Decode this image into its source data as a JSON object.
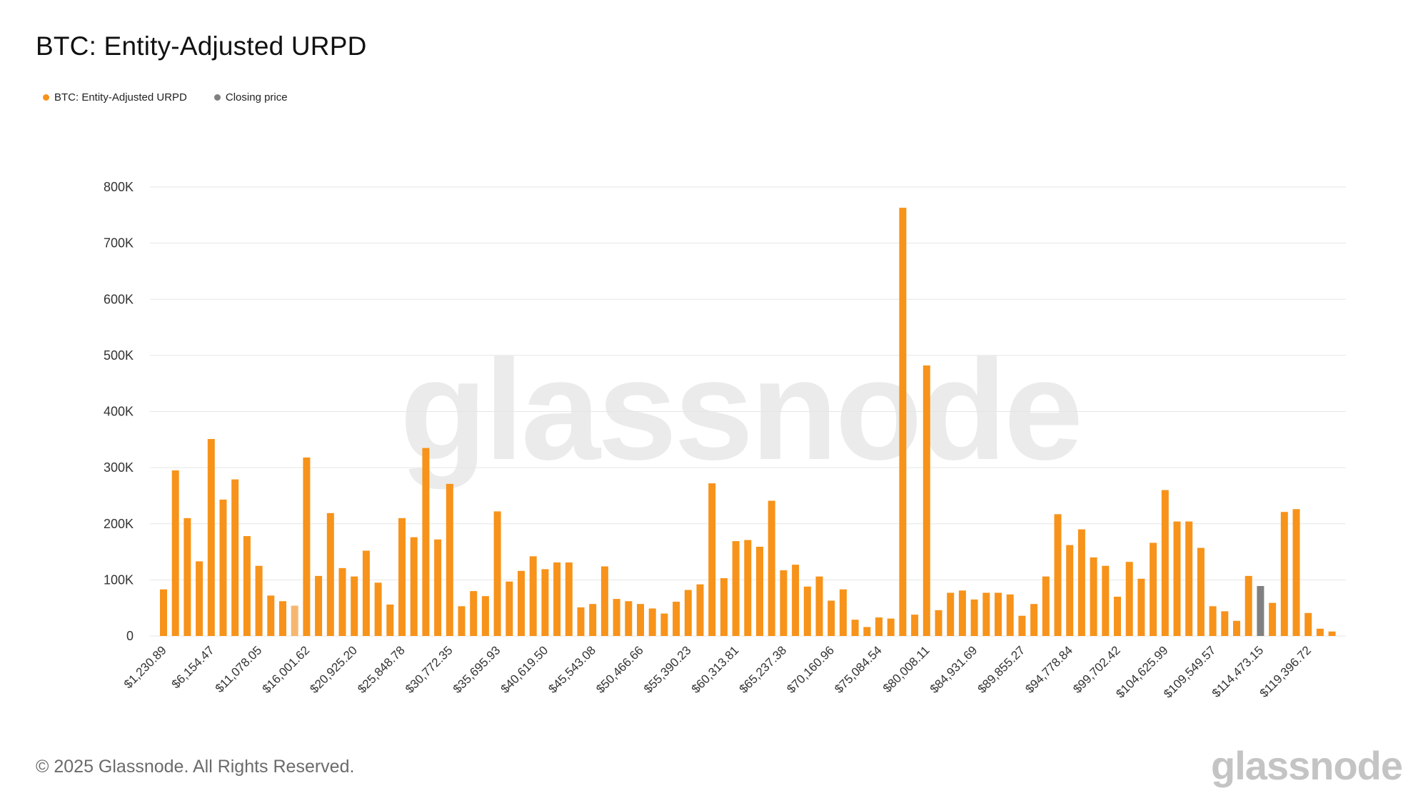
{
  "title": "BTC: Entity-Adjusted URPD",
  "legend": [
    {
      "label": "BTC: Entity-Adjusted URPD",
      "color": "#f7931a"
    },
    {
      "label": "Closing price",
      "color": "#808080"
    }
  ],
  "footer": "© 2025 Glassnode. All Rights Reserved.",
  "brand": "glassnode",
  "watermark": "glassnode",
  "chart_data": {
    "type": "bar",
    "ylim": [
      0,
      800000
    ],
    "yticks": [
      {
        "value": 0,
        "label": "0"
      },
      {
        "value": 100000,
        "label": "100K"
      },
      {
        "value": 200000,
        "label": "200K"
      },
      {
        "value": 300000,
        "label": "300K"
      },
      {
        "value": 400000,
        "label": "400K"
      },
      {
        "value": 500000,
        "label": "500K"
      },
      {
        "value": 600000,
        "label": "600K"
      },
      {
        "value": 700000,
        "label": "700K"
      },
      {
        "value": 800000,
        "label": "800K"
      }
    ],
    "xticks": [
      {
        "index": 0,
        "label": "$1,230.89"
      },
      {
        "index": 4,
        "label": "$6,154.47"
      },
      {
        "index": 8,
        "label": "$11,078.05"
      },
      {
        "index": 12,
        "label": "$16,001.62"
      },
      {
        "index": 16,
        "label": "$20,925.20"
      },
      {
        "index": 20,
        "label": "$25,848.78"
      },
      {
        "index": 24,
        "label": "$30,772.35"
      },
      {
        "index": 28,
        "label": "$35,695.93"
      },
      {
        "index": 32,
        "label": "$40,619.50"
      },
      {
        "index": 36,
        "label": "$45,543.08"
      },
      {
        "index": 40,
        "label": "$50,466.66"
      },
      {
        "index": 44,
        "label": "$55,390.23"
      },
      {
        "index": 48,
        "label": "$60,313.81"
      },
      {
        "index": 52,
        "label": "$65,237.38"
      },
      {
        "index": 56,
        "label": "$70,160.96"
      },
      {
        "index": 60,
        "label": "$75,084.54"
      },
      {
        "index": 64,
        "label": "$80,008.11"
      },
      {
        "index": 68,
        "label": "$84,931.69"
      },
      {
        "index": 72,
        "label": "$89,855.27"
      },
      {
        "index": 76,
        "label": "$94,778.84"
      },
      {
        "index": 80,
        "label": "$99,702.42"
      },
      {
        "index": 84,
        "label": "$104,625.99"
      },
      {
        "index": 88,
        "label": "$109,549.57"
      },
      {
        "index": 92,
        "label": "$114,473.15"
      },
      {
        "index": 96,
        "label": "$119,396.72"
      }
    ],
    "series": [
      {
        "name": "BTC: Entity-Adjusted URPD",
        "color": "#f7931a",
        "highlight_color": "#f5b770",
        "highlight_index": 11,
        "values": [
          83000,
          295000,
          210000,
          133000,
          351000,
          243000,
          279000,
          178000,
          125000,
          72000,
          62000,
          54000,
          318000,
          107000,
          219000,
          121000,
          106000,
          152000,
          95000,
          56000,
          210000,
          176000,
          335000,
          172000,
          271000,
          53000,
          80000,
          71000,
          222000,
          97000,
          116000,
          142000,
          119000,
          131000,
          131000,
          51000,
          57000,
          124000,
          66000,
          62000,
          57000,
          49000,
          40000,
          61000,
          82000,
          92000,
          272000,
          103000,
          169000,
          171000,
          159000,
          241000,
          117000,
          127000,
          88000,
          106000,
          63000,
          83000,
          29000,
          16000,
          33000,
          31000,
          763000,
          38000,
          482000,
          46000,
          77000,
          81000,
          65000,
          77000,
          77000,
          74000,
          36000,
          57000,
          106000,
          217000,
          162000,
          190000,
          140000,
          125000,
          70000,
          132000,
          102000,
          166000,
          260000,
          204000,
          204000,
          157000,
          53000,
          44000,
          27000,
          107000,
          null,
          59000,
          221000,
          226000,
          41000,
          13000,
          8000
        ]
      },
      {
        "name": "Closing price",
        "color": "#808080",
        "values_by_index": [
          {
            "index": 92,
            "value": 89000
          }
        ]
      }
    ]
  }
}
